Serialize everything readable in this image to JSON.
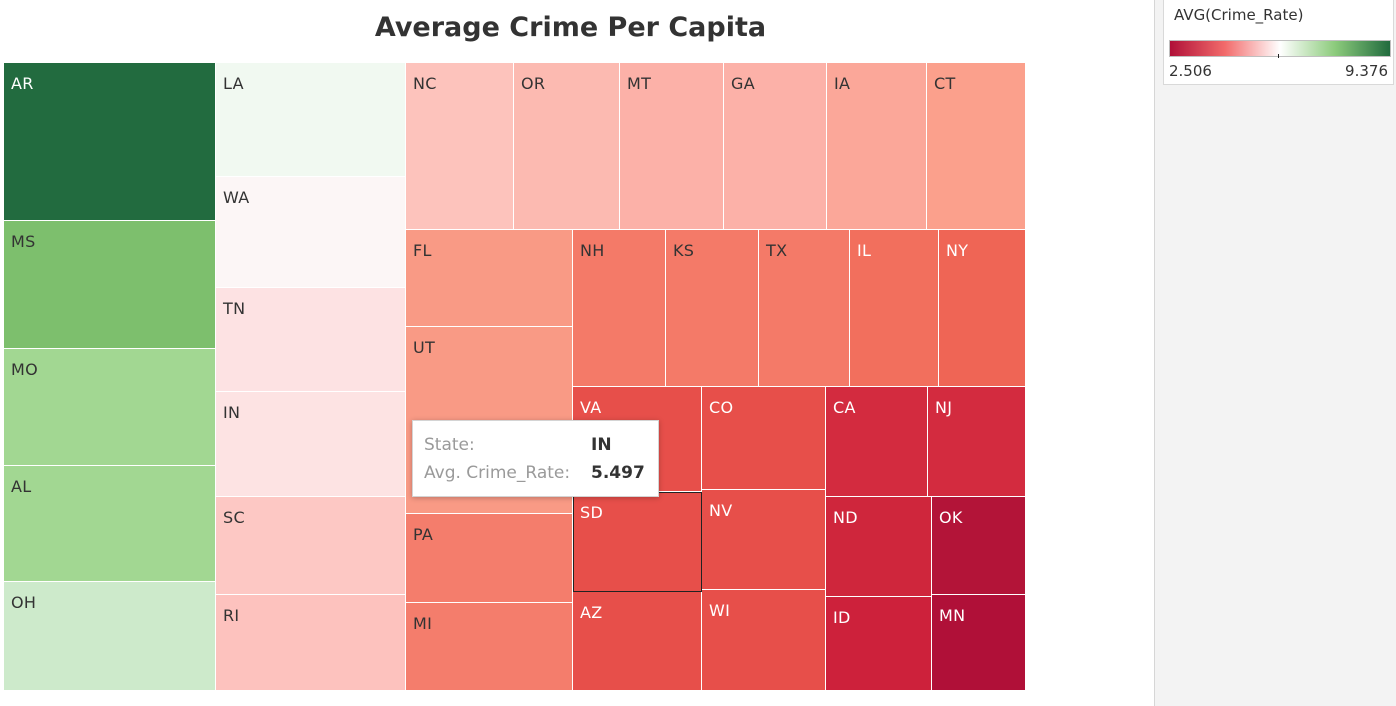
{
  "chart_data": {
    "type": "treemap",
    "title": "Average Crime Per Capita",
    "color_field": "AVG(Crime_Rate)",
    "color_range": [
      2.506,
      9.376
    ],
    "color_scale": [
      "#b01038",
      "#ffffff",
      "#216b3e"
    ],
    "states": [
      {
        "label": "AR",
        "value": 9.376,
        "color": "#226b3f",
        "text_color": "#ffffff"
      },
      {
        "label": "MS",
        "value": 8.0,
        "color": "#7dbf6d",
        "text_color": "#333333"
      },
      {
        "label": "MO",
        "value": 7.3,
        "color": "#a2d792",
        "text_color": "#333333"
      },
      {
        "label": "AL",
        "value": 7.3,
        "color": "#a2d792",
        "text_color": "#333333"
      },
      {
        "label": "OH",
        "value": 6.6,
        "color": "#cdeacb",
        "text_color": "#333333"
      },
      {
        "label": "LA",
        "value": 6.1,
        "color": "#f1f9f1",
        "text_color": "#333333"
      },
      {
        "label": "WA",
        "value": 5.8,
        "color": "#fcf6f6",
        "text_color": "#333333"
      },
      {
        "label": "TN",
        "value": 5.6,
        "color": "#fde2e3",
        "text_color": "#333333"
      },
      {
        "label": "IN",
        "value": 5.497,
        "color": "#fde3e3",
        "text_color": "#333333"
      },
      {
        "label": "SC",
        "value": 5.2,
        "color": "#fdc8c4",
        "text_color": "#333333"
      },
      {
        "label": "RI",
        "value": 5.2,
        "color": "#fdc2be",
        "text_color": "#333333"
      },
      {
        "label": "NC",
        "value": 5.2,
        "color": "#fdc3bc",
        "text_color": "#333333"
      },
      {
        "label": "OR",
        "value": 5.1,
        "color": "#fcbab1",
        "text_color": "#333333"
      },
      {
        "label": "MT",
        "value": 5.0,
        "color": "#fcb1a8",
        "text_color": "#333333"
      },
      {
        "label": "GA",
        "value": 5.0,
        "color": "#fcb1a8",
        "text_color": "#333333"
      },
      {
        "label": "IA",
        "value": 4.9,
        "color": "#fba799",
        "text_color": "#333333"
      },
      {
        "label": "CT",
        "value": 4.9,
        "color": "#fba08c",
        "text_color": "#333333"
      },
      {
        "label": "FL",
        "value": 4.8,
        "color": "#f99a85",
        "text_color": "#333333"
      },
      {
        "label": "UT",
        "value": 4.8,
        "color": "#f99a85",
        "text_color": "#333333"
      },
      {
        "label": "PA",
        "value": 4.6,
        "color": "#f47d6c",
        "text_color": "#333333"
      },
      {
        "label": "MI",
        "value": 4.6,
        "color": "#f47d6c",
        "text_color": "#333333"
      },
      {
        "label": "NH",
        "value": 4.5,
        "color": "#f47a68",
        "text_color": "#333333"
      },
      {
        "label": "KS",
        "value": 4.5,
        "color": "#f47a68",
        "text_color": "#333333"
      },
      {
        "label": "TX",
        "value": 4.5,
        "color": "#f47a68",
        "text_color": "#333333"
      },
      {
        "label": "IL",
        "value": 4.4,
        "color": "#f26f5d",
        "text_color": "#ffffff"
      },
      {
        "label": "NY",
        "value": 4.3,
        "color": "#ef6555",
        "text_color": "#ffffff"
      },
      {
        "label": "VA",
        "value": 4.1,
        "color": "#e74f4a",
        "text_color": "#ffffff"
      },
      {
        "label": "CO",
        "value": 4.1,
        "color": "#e74f4a",
        "text_color": "#ffffff"
      },
      {
        "label": "SD",
        "value": 4.1,
        "color": "#e74f4a",
        "text_color": "#ffffff"
      },
      {
        "label": "NV",
        "value": 4.1,
        "color": "#e74f4a",
        "text_color": "#ffffff"
      },
      {
        "label": "AZ",
        "value": 4.1,
        "color": "#e74f4a",
        "text_color": "#ffffff"
      },
      {
        "label": "WI",
        "value": 4.1,
        "color": "#e74f4a",
        "text_color": "#ffffff"
      },
      {
        "label": "CA",
        "value": 3.6,
        "color": "#d32b3f",
        "text_color": "#ffffff"
      },
      {
        "label": "NJ",
        "value": 3.6,
        "color": "#d32b3f",
        "text_color": "#ffffff"
      },
      {
        "label": "ND",
        "value": 3.5,
        "color": "#cf263c",
        "text_color": "#ffffff"
      },
      {
        "label": "ID",
        "value": 3.4,
        "color": "#cd213b",
        "text_color": "#ffffff"
      },
      {
        "label": "OK",
        "value": 2.7,
        "color": "#b31438",
        "text_color": "#ffffff"
      },
      {
        "label": "MN",
        "value": 2.506,
        "color": "#b01038",
        "text_color": "#ffffff"
      }
    ],
    "selected": "SD"
  },
  "legend": {
    "title": "AVG(Crime_Rate)",
    "min": "2.506",
    "max": "9.376"
  },
  "tooltip": {
    "rows": [
      {
        "key": "State:",
        "value": "IN"
      },
      {
        "key": "Avg. Crime_Rate:",
        "value": "5.497"
      }
    ]
  }
}
